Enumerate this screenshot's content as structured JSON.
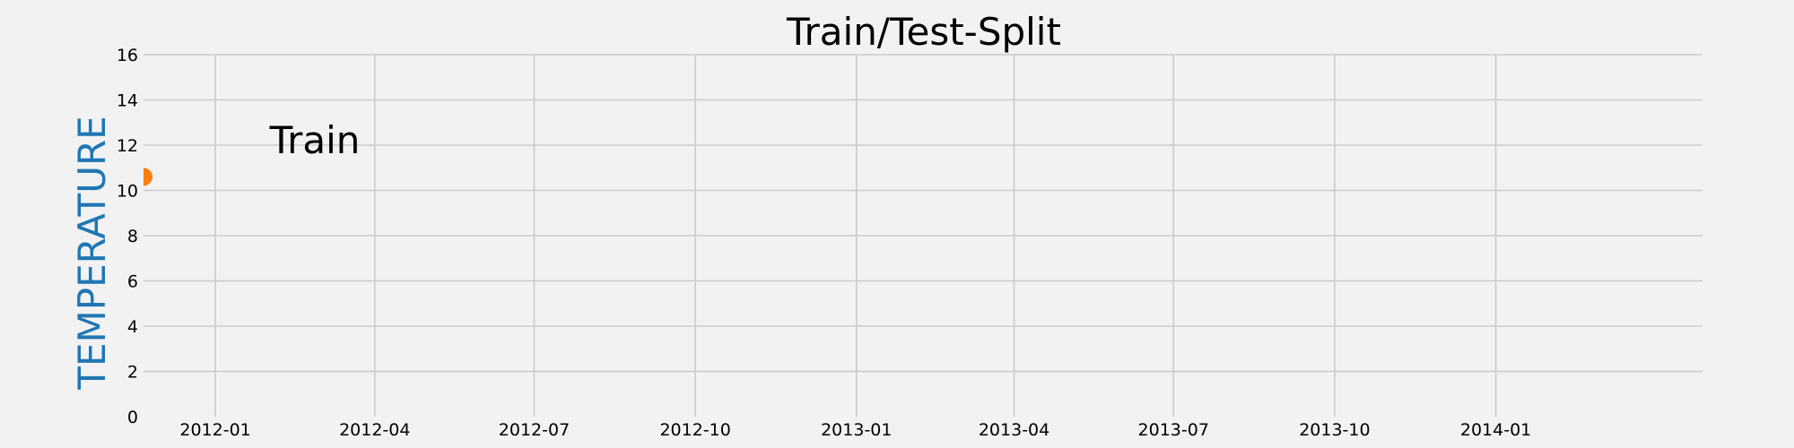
{
  "chart_data": {
    "type": "scatter",
    "title": "Train/Test-Split",
    "xlabel": "",
    "ylabel": "TEMPERATURE",
    "x_ticks": [
      "2012-01",
      "2012-04",
      "2012-07",
      "2012-10",
      "2013-01",
      "2013-04",
      "2013-07",
      "2013-10",
      "2014-01"
    ],
    "xlim": [
      "2011-11-21",
      "2014-04-29"
    ],
    "ylim": [
      0,
      16
    ],
    "y_ticks": [
      0,
      2,
      4,
      6,
      8,
      10,
      12,
      14,
      16
    ],
    "grid": true,
    "series": [
      {
        "x": [
          "2011-11-21"
        ],
        "y": [
          10.6
        ]
      }
    ],
    "annotations": [
      {
        "text": "Train",
        "x": "2012-02-01",
        "y": 12.2
      }
    ],
    "colors": {
      "ylabel": "#1f77b4",
      "marker": "#ff7f0e",
      "grid": "#cbcbcb",
      "background": "#f2f2f2"
    }
  }
}
